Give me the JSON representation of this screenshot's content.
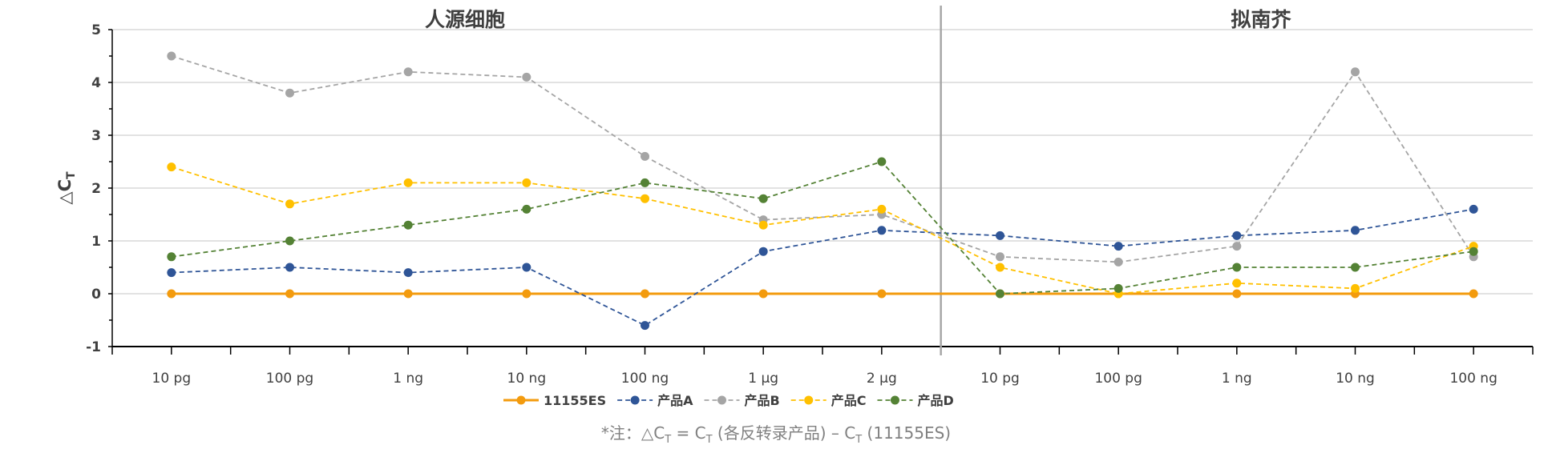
{
  "chart_data": {
    "type": "line",
    "panels": [
      "人源细胞",
      "拟南芥"
    ],
    "categories": [
      "10 pg",
      "100 pg",
      "1 ng",
      "10 ng",
      "100 ng",
      "1 µg",
      "2 µg",
      "10 pg",
      "100 pg",
      "1 ng",
      "10 ng",
      "100 ng"
    ],
    "ylabel": "△C",
    "ylabel_sub": "T",
    "ylim": [
      -1,
      5
    ],
    "yticks": [
      "-1",
      "0",
      "1",
      "2",
      "3",
      "4",
      "5"
    ],
    "grid": true,
    "legend_position": "bottom",
    "series": [
      {
        "name": "11155ES",
        "color": "#F39B0E",
        "style": "solid",
        "values": [
          0,
          0,
          0,
          0,
          0,
          0,
          0,
          0,
          0,
          0,
          0,
          0
        ]
      },
      {
        "name": "产品A",
        "color": "#2F5597",
        "style": "dashed",
        "values": [
          0.4,
          0.5,
          0.4,
          0.5,
          -0.6,
          0.8,
          1.2,
          1.1,
          0.9,
          1.1,
          1.2,
          1.6
        ]
      },
      {
        "name": "产品B",
        "color": "#A5A5A5",
        "style": "dashed",
        "values": [
          4.5,
          3.8,
          4.2,
          4.1,
          2.6,
          1.4,
          1.5,
          0.7,
          0.6,
          0.9,
          4.2,
          0.7
        ]
      },
      {
        "name": "产品C",
        "color": "#FFC000",
        "style": "dashed",
        "values": [
          2.4,
          1.7,
          2.1,
          2.1,
          1.8,
          1.3,
          1.6,
          0.5,
          0.0,
          0.2,
          0.1,
          0.9
        ]
      },
      {
        "name": "产品D",
        "color": "#548235",
        "style": "dashed",
        "values": [
          0.7,
          1.0,
          1.3,
          1.6,
          2.1,
          1.8,
          2.5,
          0.0,
          0.1,
          0.5,
          0.5,
          0.8
        ]
      }
    ],
    "note": {
      "prefix": "*注：△C",
      "sub1": "T",
      "mid": " = C",
      "sub2": "T",
      "mid2": " (各反转录产品) – C",
      "sub3": "T",
      "suffix": " (11155ES)"
    }
  }
}
